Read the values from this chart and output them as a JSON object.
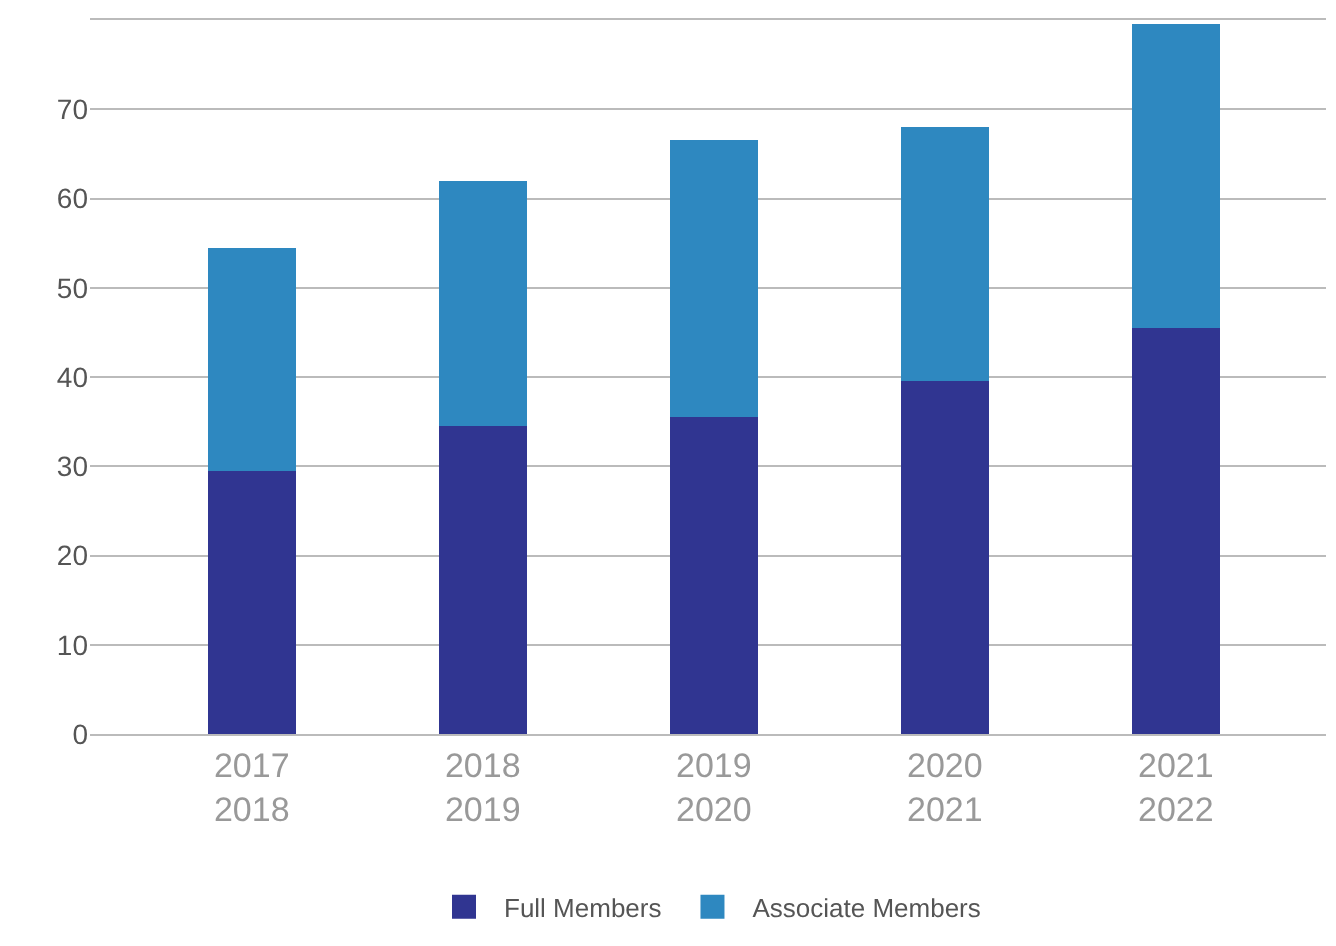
{
  "chart_data": {
    "type": "bar",
    "stacked": true,
    "categories": [
      "2017\n2018",
      "2018\n2019",
      "2019\n2020",
      "2020\n2021",
      "2021\n2022"
    ],
    "series": [
      {
        "name": "Full Members",
        "color": "#303591",
        "values": [
          29.5,
          34.5,
          35.5,
          39.5,
          45.5
        ]
      },
      {
        "name": "Associate Members",
        "color": "#2e88c0",
        "values": [
          25,
          27.5,
          31,
          28.5,
          34
        ]
      }
    ],
    "ylim": [
      0,
      80
    ],
    "yticks": [
      0,
      10,
      20,
      30,
      40,
      50,
      60,
      70
    ],
    "grid": "y",
    "legend": "bottom"
  }
}
